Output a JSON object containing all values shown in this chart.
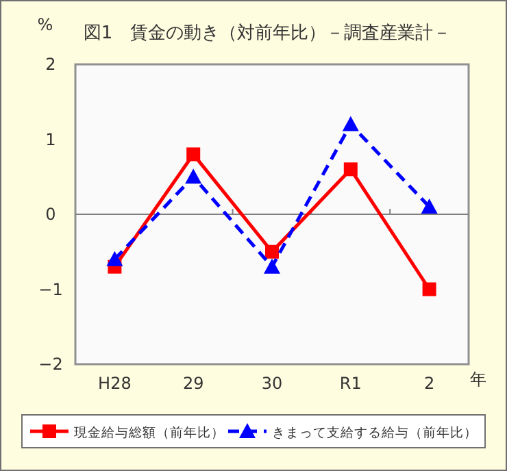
{
  "chart_data": {
    "type": "line",
    "title": "図1　賃金の動き（対前年比）－調査産業計－",
    "ylabel": "%",
    "xlabel": "年",
    "categories": [
      "H28",
      "29",
      "30",
      "R1",
      "2"
    ],
    "series": [
      {
        "name": "現金給与総額（前年比）",
        "color": "#ff0000",
        "marker": "square",
        "line_style": "solid",
        "values": [
          -0.7,
          0.8,
          -0.5,
          0.6,
          -1.0
        ]
      },
      {
        "name": "きまって支給する給与（前年比）",
        "color": "#0000ff",
        "marker": "triangle",
        "line_style": "dashed",
        "values": [
          -0.6,
          0.5,
          -0.7,
          1.2,
          0.1
        ]
      }
    ],
    "ylim": [
      -2,
      2
    ],
    "yticks": [
      -2,
      -1,
      0,
      1,
      2
    ],
    "grid": false,
    "legend": "bottom",
    "ref_lines": [
      {
        "axis": "y",
        "value": 0,
        "color": "#808080"
      }
    ]
  }
}
